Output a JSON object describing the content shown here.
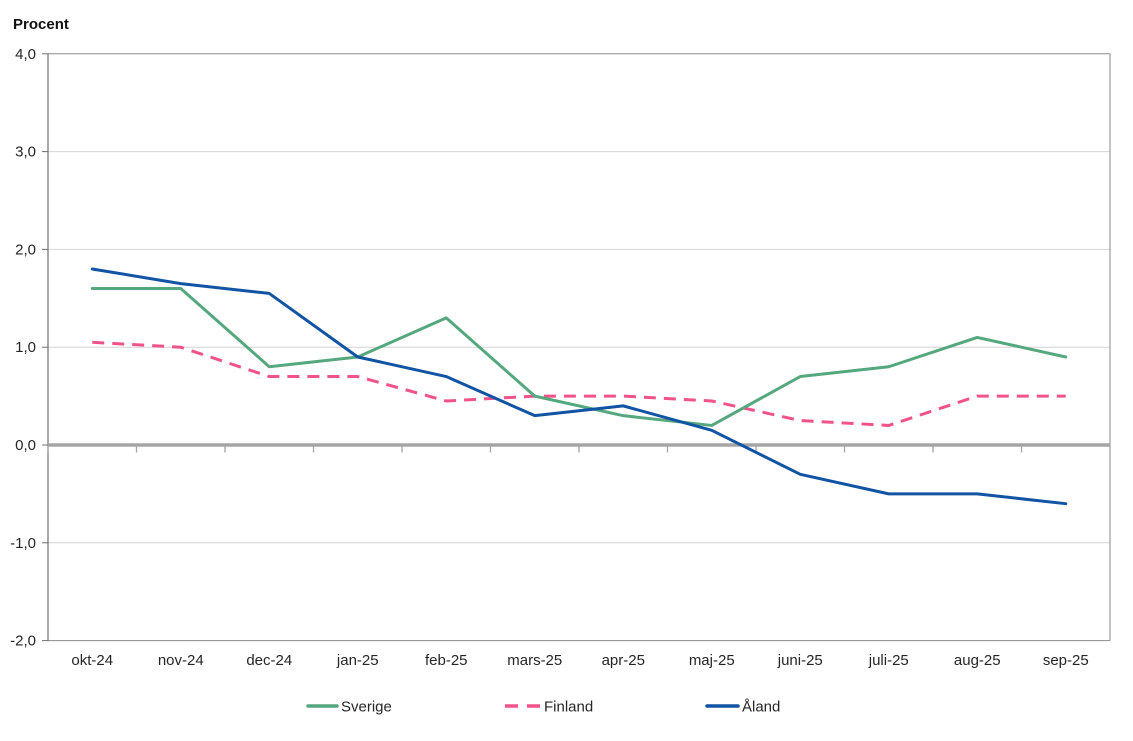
{
  "title": "Procent",
  "chart_data": {
    "type": "line",
    "title": "Procent",
    "categories": [
      "okt-24",
      "nov-24",
      "dec-24",
      "jan-25",
      "feb-25",
      "mars-25",
      "apr-25",
      "maj-25",
      "juni-25",
      "juli-25",
      "aug-25",
      "sep-25"
    ],
    "series": [
      {
        "name": "Sverige",
        "color": "#55A87E",
        "style": "solid",
        "values": [
          1.6,
          1.6,
          0.8,
          0.9,
          1.3,
          0.5,
          0.3,
          0.2,
          0.7,
          0.8,
          1.1,
          0.9
        ]
      },
      {
        "name": "Finland",
        "color": "#F0538A",
        "style": "dashed",
        "values": [
          1.05,
          1.0,
          0.7,
          0.7,
          0.45,
          0.5,
          0.5,
          0.45,
          0.25,
          0.2,
          0.5,
          0.5
        ]
      },
      {
        "name": "Åland",
        "color": "#1254A4",
        "style": "solid",
        "values": [
          1.8,
          1.65,
          1.55,
          0.9,
          0.7,
          0.3,
          0.4,
          0.15,
          -0.3,
          -0.5,
          -0.5,
          -0.6
        ]
      }
    ],
    "ylabel": "Procent",
    "ylim": [
      -2.0,
      4.0
    ],
    "ytick_values": [
      4,
      3,
      2,
      1,
      0,
      -1,
      -2
    ],
    "ytick_labels": [
      "4,0",
      "3,0",
      "2,0",
      "1,0",
      "0,0",
      "-1,0",
      "-2,0"
    ],
    "grid": true,
    "zero_axis_emphasized": true,
    "legend_position": "bottom"
  },
  "colors": {
    "gridline": "#D4D4D4",
    "frame": "#8A8A8A",
    "axis": "#707070",
    "zero_line": "#A5A5A5",
    "text": "#262626"
  }
}
